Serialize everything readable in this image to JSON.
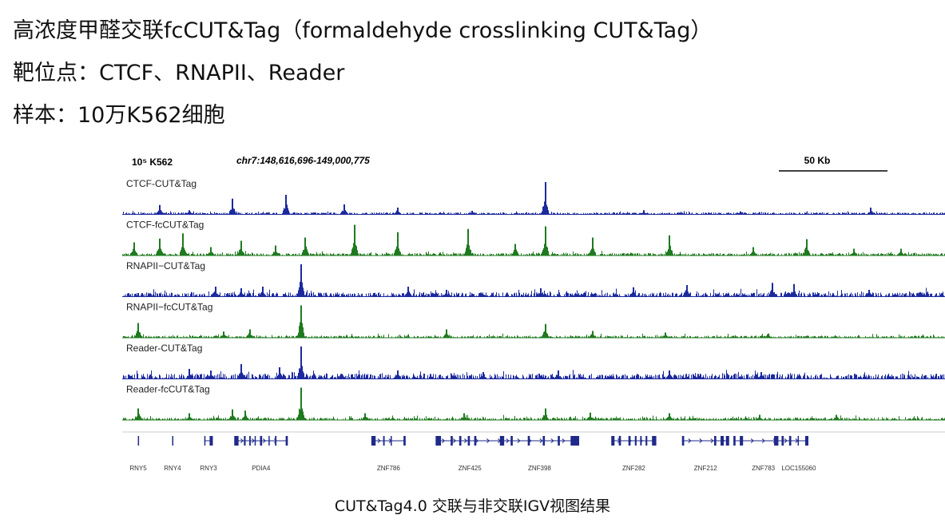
{
  "header": {
    "line1": "高浓度甲醛交联fcCUT&Tag（formaldehyde crosslinking CUT&Tag）",
    "line2": "靶位点：CTCF、RNAPII、Reader",
    "line3": "样本：10万K562细胞"
  },
  "igv": {
    "sample_label": "10⁵ K562",
    "locus": "chr7:148,616,696-149,000,775",
    "scale_label": "50 Kb"
  },
  "chart_data": {
    "type": "area",
    "title": "",
    "locus": "chr7:148,616,696-149,000,775",
    "x_range": [
      148616696,
      149000775
    ],
    "x_unit": "bp",
    "scale_bar": "50 Kb",
    "tracks": [
      {
        "name": "CTCF-CUT&Tag",
        "color": "#1c2a9e",
        "baseline": 0.05,
        "noise": 0.05,
        "peaks": [
          {
            "x": 148634000,
            "h": 0.28
          },
          {
            "x": 148648000,
            "h": 0.12
          },
          {
            "x": 148668000,
            "h": 0.48
          },
          {
            "x": 148693000,
            "h": 0.6
          },
          {
            "x": 148720000,
            "h": 0.3
          },
          {
            "x": 148745000,
            "h": 0.2
          },
          {
            "x": 148780000,
            "h": 0.1
          },
          {
            "x": 148814000,
            "h": 1.0
          },
          {
            "x": 148860000,
            "h": 0.12
          },
          {
            "x": 148905000,
            "h": 0.08
          },
          {
            "x": 148966000,
            "h": 0.2
          }
        ]
      },
      {
        "name": "CTCF-fcCUT&Tag",
        "color": "#1f7a1f",
        "baseline": 0.06,
        "noise": 0.08,
        "peaks": [
          {
            "x": 148622000,
            "h": 0.4
          },
          {
            "x": 148634000,
            "h": 0.52
          },
          {
            "x": 148645000,
            "h": 0.68
          },
          {
            "x": 148658000,
            "h": 0.25
          },
          {
            "x": 148672000,
            "h": 0.45
          },
          {
            "x": 148688000,
            "h": 0.3
          },
          {
            "x": 148702000,
            "h": 0.55
          },
          {
            "x": 148725000,
            "h": 0.95
          },
          {
            "x": 148745000,
            "h": 0.72
          },
          {
            "x": 148778000,
            "h": 0.82
          },
          {
            "x": 148800000,
            "h": 0.35
          },
          {
            "x": 148814000,
            "h": 0.9
          },
          {
            "x": 148836000,
            "h": 0.55
          },
          {
            "x": 148872000,
            "h": 0.62
          },
          {
            "x": 148911000,
            "h": 0.25
          },
          {
            "x": 148936000,
            "h": 0.5
          },
          {
            "x": 148958000,
            "h": 0.2
          },
          {
            "x": 148980000,
            "h": 0.2
          }
        ]
      },
      {
        "name": "RNAPII−CUT&Tag",
        "color": "#1c2a9e",
        "baseline": 0.12,
        "noise": 0.15,
        "peaks": [
          {
            "x": 148660000,
            "h": 0.3
          },
          {
            "x": 148672000,
            "h": 0.25
          },
          {
            "x": 148682000,
            "h": 0.3
          },
          {
            "x": 148700000,
            "h": 1.0
          },
          {
            "x": 148750000,
            "h": 0.3
          },
          {
            "x": 148768000,
            "h": 0.2
          },
          {
            "x": 148812000,
            "h": 0.25
          },
          {
            "x": 148855000,
            "h": 0.28
          },
          {
            "x": 148880000,
            "h": 0.35
          },
          {
            "x": 148920000,
            "h": 0.42
          },
          {
            "x": 148930000,
            "h": 0.38
          },
          {
            "x": 148965000,
            "h": 0.2
          }
        ]
      },
      {
        "name": "RNAPII−fcCUT&Tag",
        "color": "#1f7a1f",
        "baseline": 0.05,
        "noise": 0.08,
        "peaks": [
          {
            "x": 148624000,
            "h": 0.45
          },
          {
            "x": 148664000,
            "h": 0.18
          },
          {
            "x": 148676000,
            "h": 0.25
          },
          {
            "x": 148700000,
            "h": 1.0
          },
          {
            "x": 148768000,
            "h": 0.25
          },
          {
            "x": 148814000,
            "h": 0.42
          },
          {
            "x": 148836000,
            "h": 0.2
          },
          {
            "x": 148870000,
            "h": 0.15
          },
          {
            "x": 148918000,
            "h": 0.12
          }
        ]
      },
      {
        "name": "Reader-CUT&Tag",
        "color": "#1c2a9e",
        "baseline": 0.15,
        "noise": 0.15,
        "peaks": [
          {
            "x": 148648000,
            "h": 0.3
          },
          {
            "x": 148658000,
            "h": 0.25
          },
          {
            "x": 148672000,
            "h": 0.45
          },
          {
            "x": 148690000,
            "h": 0.35
          },
          {
            "x": 148700000,
            "h": 1.0
          },
          {
            "x": 148745000,
            "h": 0.25
          },
          {
            "x": 148785000,
            "h": 0.2
          },
          {
            "x": 148820000,
            "h": 0.25
          },
          {
            "x": 148872000,
            "h": 0.25
          },
          {
            "x": 148915000,
            "h": 0.2
          }
        ]
      },
      {
        "name": "Reader-fcCUT&Tag",
        "color": "#1f7a1f",
        "baseline": 0.06,
        "noise": 0.1,
        "peaks": [
          {
            "x": 148624000,
            "h": 0.35
          },
          {
            "x": 148648000,
            "h": 0.2
          },
          {
            "x": 148668000,
            "h": 0.32
          },
          {
            "x": 148674000,
            "h": 0.28
          },
          {
            "x": 148700000,
            "h": 1.0
          },
          {
            "x": 148730000,
            "h": 0.2
          },
          {
            "x": 148776000,
            "h": 0.2
          },
          {
            "x": 148814000,
            "h": 0.35
          },
          {
            "x": 148835000,
            "h": 0.22
          },
          {
            "x": 148872000,
            "h": 0.2
          },
          {
            "x": 148914000,
            "h": 0.15
          },
          {
            "x": 148950000,
            "h": 0.15
          }
        ]
      }
    ],
    "genes": [
      {
        "name": "RNY5",
        "start": 148624000,
        "end": 148624300,
        "exons": [
          [
            148624000,
            148624300
          ]
        ]
      },
      {
        "name": "RNY4",
        "start": 148640000,
        "end": 148640300,
        "exons": [
          [
            148640000,
            148640300
          ]
        ]
      },
      {
        "name": "RNY3",
        "start": 148655000,
        "end": 148659000,
        "exons": [
          [
            148655000,
            148655400
          ],
          [
            148657500,
            148659000
          ]
        ]
      },
      {
        "name": "PDIA4",
        "start": 148669000,
        "end": 148694000,
        "exons": [
          [
            148669000,
            148671000
          ],
          [
            148673500,
            148674300
          ],
          [
            148676000,
            148676700
          ],
          [
            148678500,
            148679000
          ],
          [
            148681000,
            148682000
          ],
          [
            148685000,
            148685500
          ],
          [
            148688000,
            148688700
          ],
          [
            148693000,
            148694000
          ]
        ]
      },
      {
        "name": "ZNF786",
        "start": 148733000,
        "end": 148749000,
        "exons": [
          [
            148733000,
            148735000
          ],
          [
            148738500,
            148739200
          ],
          [
            148742000,
            148742500
          ],
          [
            148748000,
            148749000
          ]
        ]
      },
      {
        "name": "ZNF425",
        "start": 148763000,
        "end": 148795000,
        "exons": [
          [
            148763000,
            148765500
          ],
          [
            148770000,
            148771000
          ],
          [
            148774000,
            148775000
          ],
          [
            148778000,
            148779000
          ],
          [
            148781000,
            148782000
          ]
        ]
      },
      {
        "name": "ZNF398",
        "start": 148793000,
        "end": 148830000,
        "exons": [
          [
            148793000,
            148795000
          ],
          [
            148798000,
            148799000
          ],
          [
            148806000,
            148807000
          ],
          [
            148813000,
            148814000
          ],
          [
            148820000,
            148821000
          ],
          [
            148826000,
            148830000
          ]
        ]
      },
      {
        "name": "ZNF282",
        "start": 148845000,
        "end": 148866000,
        "exons": [
          [
            148845000,
            148846500
          ],
          [
            148848500,
            148849500
          ],
          [
            148853000,
            148854000
          ],
          [
            148856000,
            148856800
          ],
          [
            148858500,
            148859200
          ],
          [
            148861000,
            148861800
          ],
          [
            148864000,
            148866000
          ]
        ]
      },
      {
        "name": "ZNF212",
        "start": 148878000,
        "end": 148900000,
        "exons": [
          [
            148878000,
            148879000
          ],
          [
            148893000,
            148894000
          ],
          [
            148896000,
            148897500
          ],
          [
            148898500,
            148900000
          ]
        ]
      },
      {
        "name": "ZNF783",
        "start": 148902000,
        "end": 148930000,
        "exons": [
          [
            148902000,
            148903000
          ],
          [
            148905000,
            148906500
          ],
          [
            148921000,
            148923000
          ],
          [
            148924500,
            148925500
          ]
        ]
      },
      {
        "name": "LOC155060",
        "start": 148928000,
        "end": 148937000,
        "exons": [
          [
            148928000,
            148929000
          ],
          [
            148932000,
            148932500
          ],
          [
            148935500,
            148937000
          ]
        ]
      }
    ]
  },
  "caption": "CUT&Tag4.0 交联与非交联IGV视图结果"
}
